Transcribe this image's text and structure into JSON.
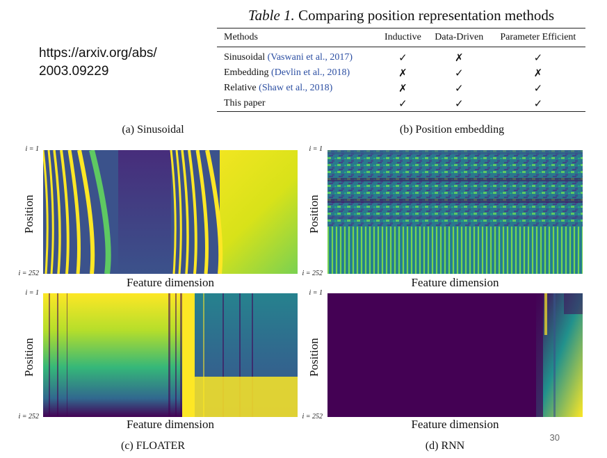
{
  "url": {
    "line1": "https://arxiv.org/abs/",
    "line2": "2003.09229"
  },
  "table": {
    "title_prefix": "Table 1.",
    "title_rest": " Comparing position representation methods",
    "headers": [
      "Methods",
      "Inductive",
      "Data-Driven",
      "Parameter Efficient"
    ],
    "rows": [
      {
        "method": "Sinusoidal",
        "cite": "(Vaswani et al., 2017)",
        "inductive": "✓",
        "data_driven": "✗",
        "param_eff": "✓"
      },
      {
        "method": "Embedding",
        "cite": "(Devlin et al., 2018)",
        "inductive": "✗",
        "data_driven": "✓",
        "param_eff": "✗"
      },
      {
        "method": "Relative",
        "cite": "(Shaw et al., 2018)",
        "inductive": "✗",
        "data_driven": "✓",
        "param_eff": "✓"
      },
      {
        "method": "This paper",
        "cite": "",
        "inductive": "✓",
        "data_driven": "✓",
        "param_eff": "✓"
      }
    ]
  },
  "panels": {
    "a": {
      "caption": "(a) Sinusoidal",
      "ylabel": "Position",
      "xlabel": "Feature dimension",
      "i_top": "i = 1",
      "i_bottom": "i = 252"
    },
    "b": {
      "caption": "(b) Position embedding",
      "ylabel": "Position",
      "xlabel": "Feature dimension",
      "i_top": "i = 1",
      "i_bottom": "i = 252"
    },
    "c": {
      "caption": "(c) FLOATER",
      "ylabel": "Position",
      "xlabel": "Feature dimension",
      "i_top": "i = 1",
      "i_bottom": "i = 252"
    },
    "d": {
      "caption": "(d) RNN",
      "ylabel": "Position",
      "xlabel": "Feature dimension",
      "i_top": "i = 1",
      "i_bottom": "i = 252"
    }
  },
  "colors": {
    "dark": "#440154",
    "mid": "#21918c",
    "bright": "#fde725",
    "cite": "#2b4ea2"
  },
  "slide_number": "30"
}
